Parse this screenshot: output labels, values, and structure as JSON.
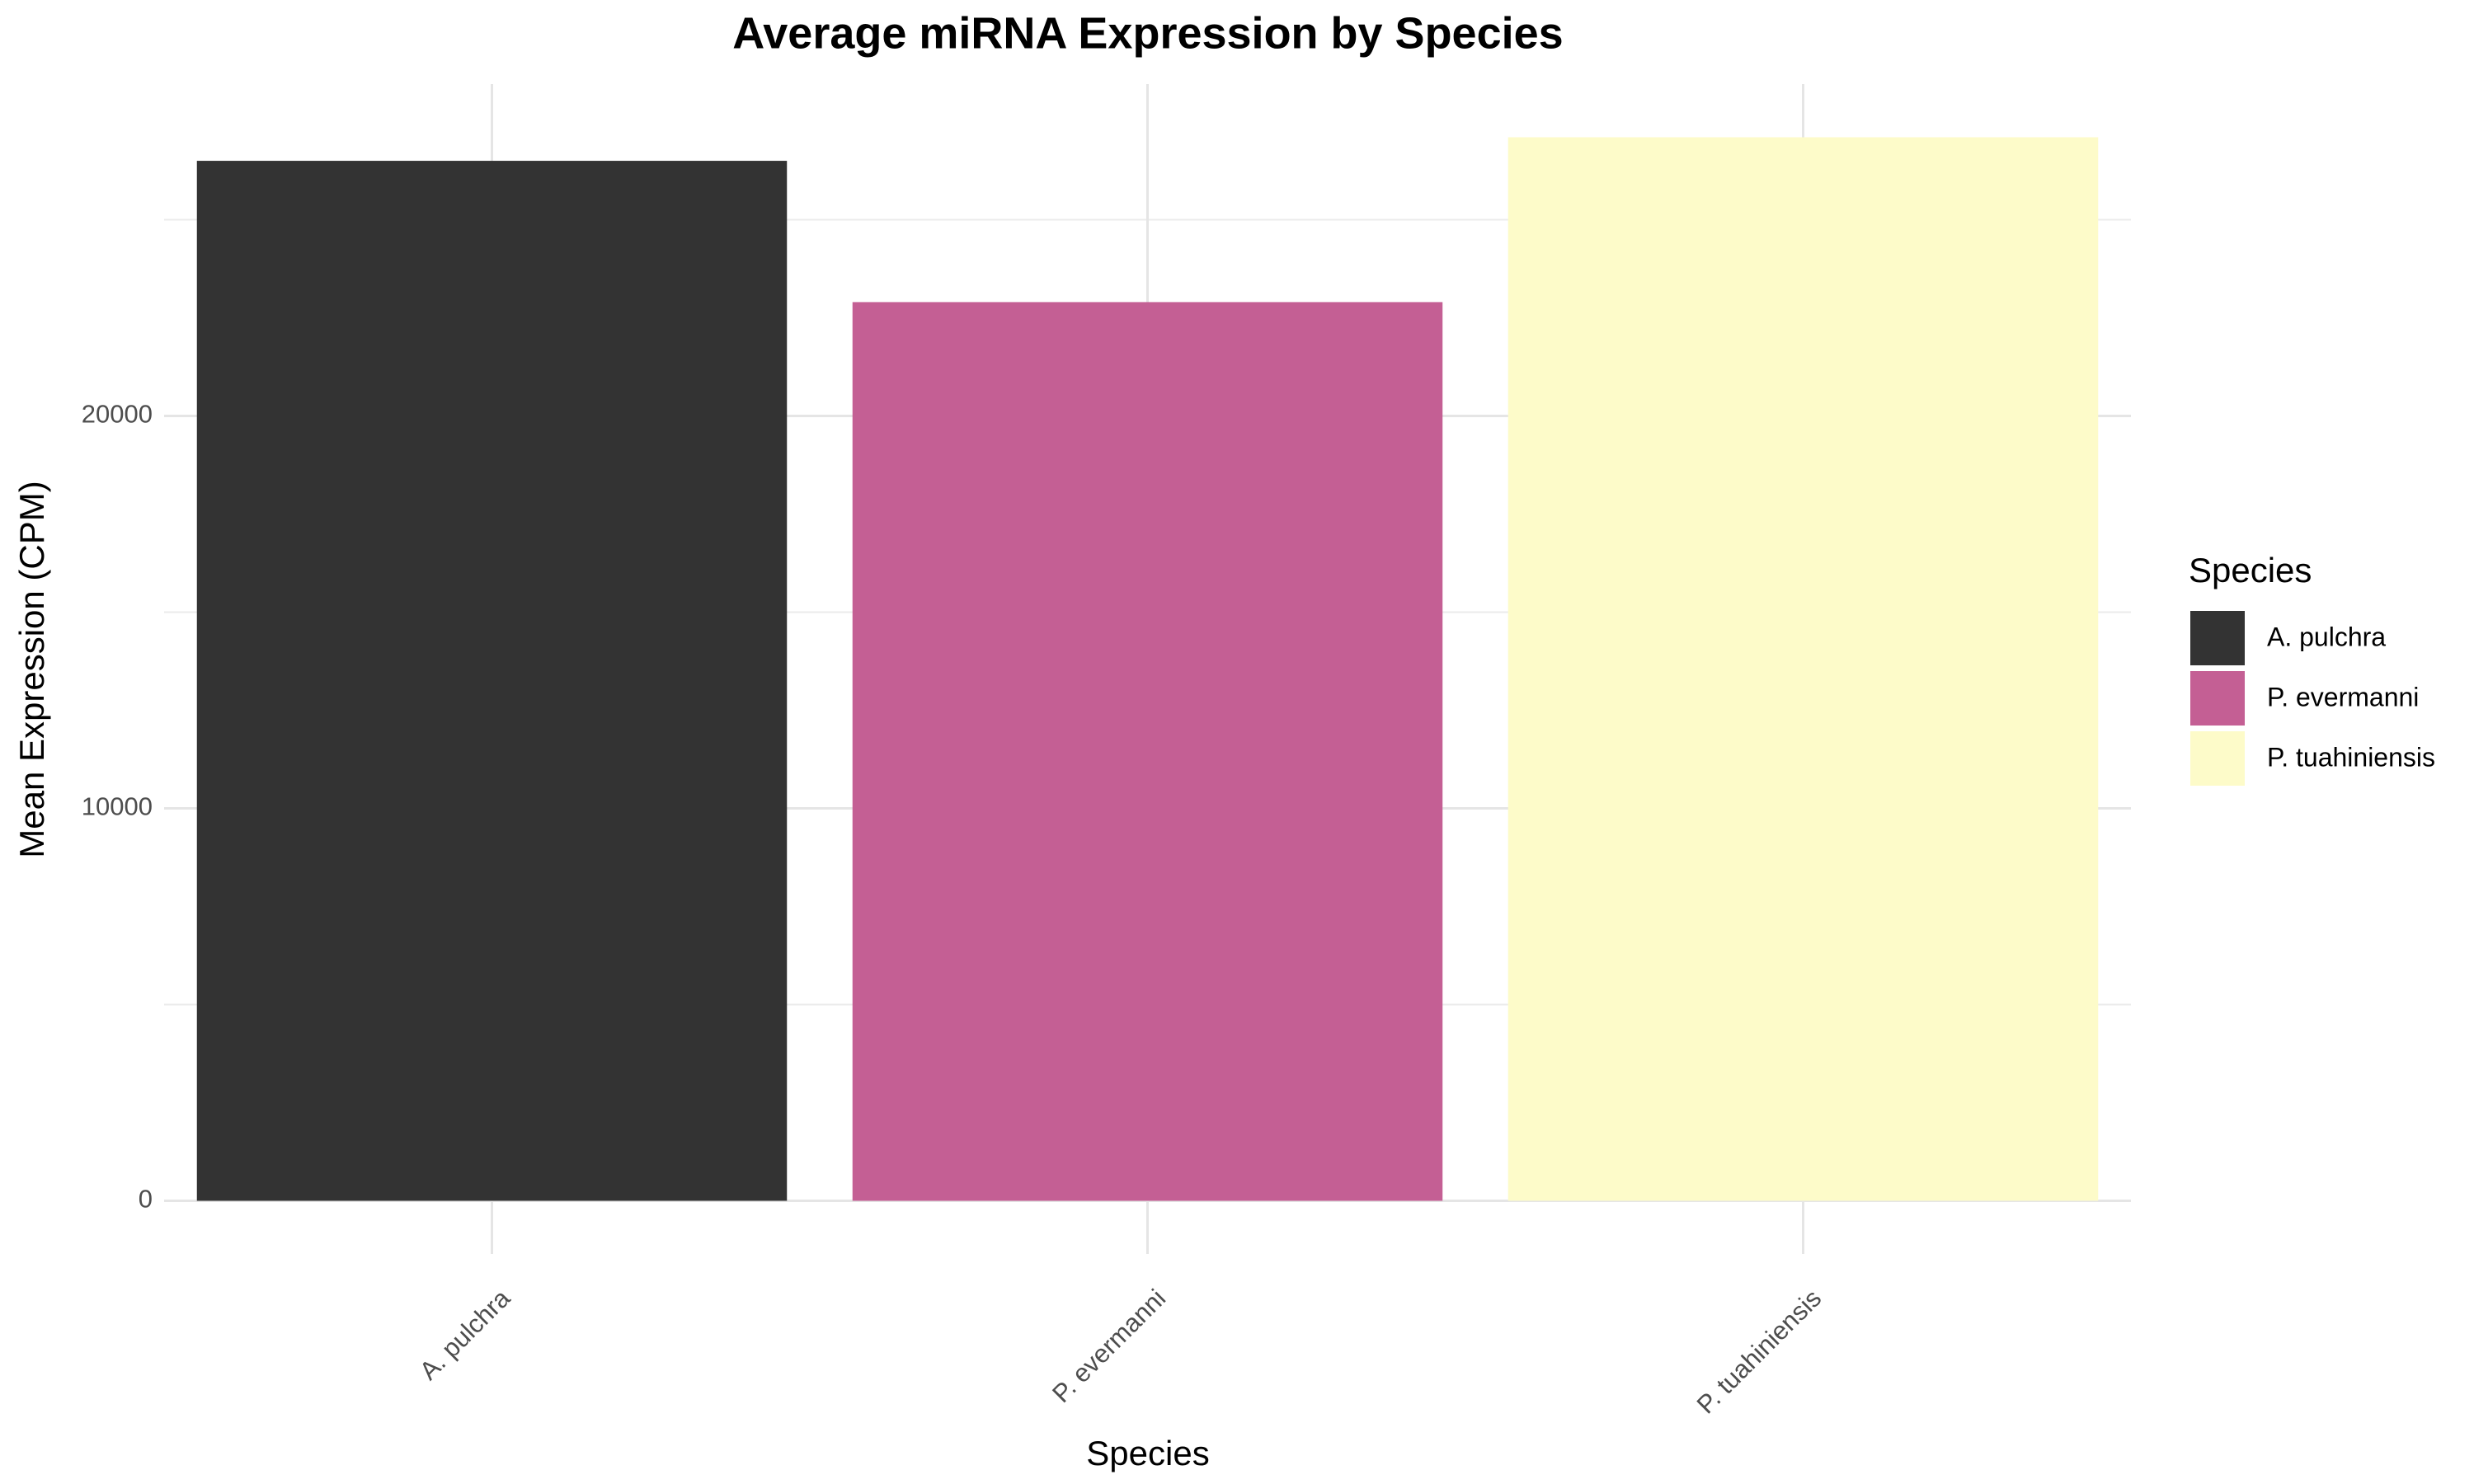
{
  "chart_data": {
    "type": "bar",
    "title": "Average miRNA Expression by Species",
    "x_label": "Species",
    "y_label": "Mean Expression (CPM)",
    "legend_title": "Species",
    "categories": [
      "A. pulchra",
      "P. evermanni",
      "P. tuahiniensis"
    ],
    "values": [
      26500,
      22900,
      27100
    ],
    "colors": [
      "#333333",
      "#c45f94",
      "#fdfbc9"
    ],
    "ylim": [
      -1355,
      28455
    ],
    "yticks": [
      0,
      10000,
      20000
    ],
    "grid": true,
    "legend": "right"
  }
}
